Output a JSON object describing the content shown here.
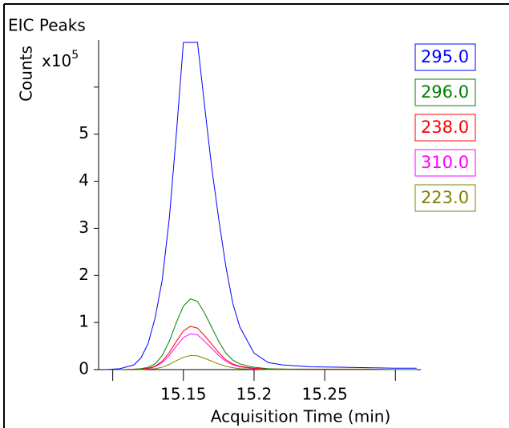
{
  "chart_data": {
    "type": "line",
    "title": "EIC Peaks",
    "ylabel": "Counts",
    "yunit": "x10",
    "yunit_exponent": "5",
    "xlabel": "Acquisition Time (min)",
    "x": [
      15.095,
      15.105,
      15.115,
      15.12,
      15.125,
      15.13,
      15.135,
      15.14,
      15.145,
      15.15,
      15.155,
      15.16,
      15.165,
      15.17,
      15.175,
      15.18,
      15.185,
      15.19,
      15.2,
      15.21,
      15.22,
      15.24,
      15.26,
      15.28,
      15.3,
      15.315
    ],
    "series": [
      {
        "name": "295.0",
        "color": "#0000ff",
        "values": [
          0,
          0.02,
          0.1,
          0.25,
          0.55,
          1.1,
          1.9,
          3.2,
          5.0,
          6.95,
          6.95,
          6.95,
          5.6,
          4.3,
          3.2,
          2.2,
          1.4,
          0.9,
          0.35,
          0.15,
          0.1,
          0.06,
          0.05,
          0.04,
          0.03,
          0.03
        ]
      },
      {
        "name": "296.0",
        "color": "#008000",
        "values": [
          0,
          0,
          0.01,
          0.02,
          0.05,
          0.12,
          0.3,
          0.6,
          1.0,
          1.35,
          1.5,
          1.45,
          1.2,
          0.9,
          0.6,
          0.35,
          0.2,
          0.12,
          0.05,
          0.02,
          0.01,
          0.01,
          0.01,
          0.01,
          0,
          0
        ]
      },
      {
        "name": "238.0",
        "color": "#ff0000",
        "values": [
          0,
          0,
          0,
          0.01,
          0.03,
          0.07,
          0.18,
          0.36,
          0.6,
          0.82,
          0.92,
          0.88,
          0.72,
          0.54,
          0.36,
          0.21,
          0.12,
          0.07,
          0.03,
          0.01,
          0.01,
          0,
          0,
          0,
          0,
          0
        ]
      },
      {
        "name": "310.0",
        "color": "#ff00ff",
        "values": [
          0,
          0,
          0,
          0.01,
          0.02,
          0.06,
          0.15,
          0.3,
          0.5,
          0.68,
          0.76,
          0.74,
          0.6,
          0.45,
          0.3,
          0.18,
          0.1,
          0.06,
          0.02,
          0.01,
          0.01,
          0,
          0,
          0,
          0,
          0
        ]
      },
      {
        "name": "223.0",
        "color": "#808000",
        "values": [
          0,
          0,
          0,
          0,
          0.01,
          0.02,
          0.05,
          0.11,
          0.19,
          0.26,
          0.3,
          0.29,
          0.24,
          0.18,
          0.12,
          0.07,
          0.04,
          0.02,
          0.01,
          0,
          0,
          0,
          0,
          0,
          0,
          0
        ]
      }
    ],
    "xlim": [
      15.09,
      15.318
    ],
    "xticks": [
      15.15,
      15.2,
      15.25
    ],
    "xticks_unlabeled": [
      15.1,
      15.3
    ],
    "ylim": [
      0,
      7
    ],
    "yticks": [
      0,
      1,
      2,
      3,
      4,
      5
    ],
    "yticks_unlabeled": [
      6
    ]
  }
}
